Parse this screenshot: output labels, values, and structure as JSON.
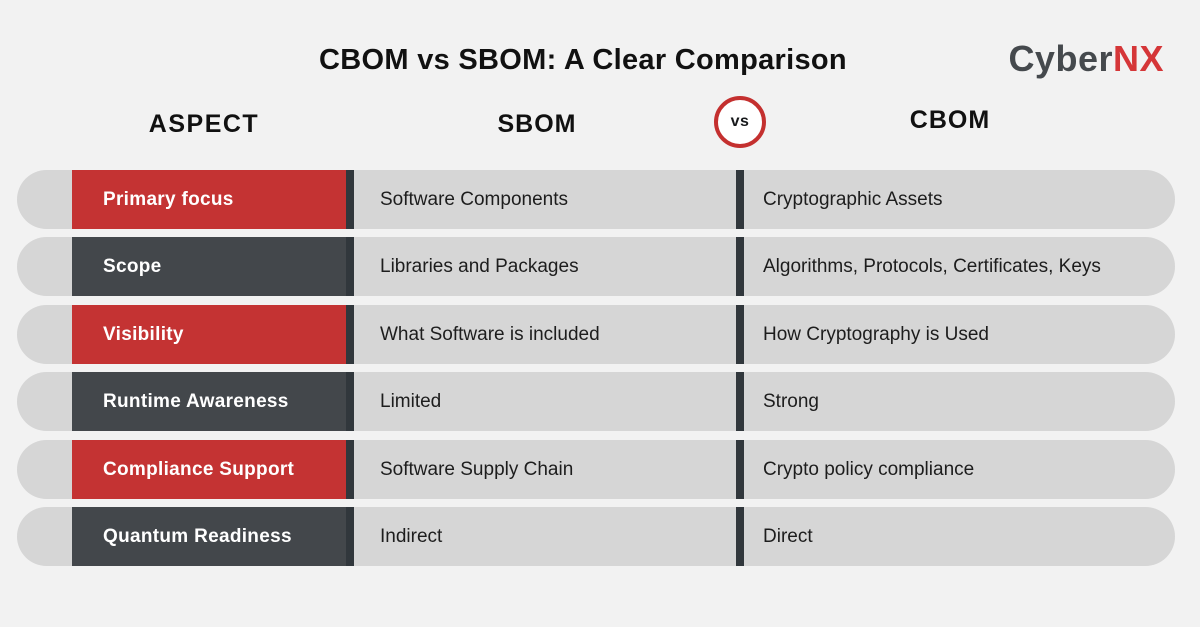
{
  "page": {
    "title": "CBOM vs SBOM: A Clear Comparison"
  },
  "logo": {
    "text_primary": "Cyber",
    "text_accent": "NX"
  },
  "header": {
    "aspect": "ASPECT",
    "sbom": "SBOM",
    "versus": "vs",
    "cbom": "CBOM"
  },
  "colors": {
    "red": "#c43333",
    "dark": "#43474b",
    "divider": "#31373c",
    "row_bg": "#d6d6d6",
    "page_bg": "#f2f2f2",
    "cell_text": "#1d1d1d",
    "logo_gray": "#45494d",
    "logo_red": "#d53638",
    "vs_border": "#c4302f"
  },
  "chart_data": {
    "type": "table",
    "title": "CBOM vs SBOM: A Clear Comparison",
    "columns": [
      "ASPECT",
      "SBOM",
      "CBOM"
    ],
    "rows": [
      {
        "aspect": "Primary focus",
        "sbom": "Software Components",
        "cbom": "Cryptographic Assets",
        "highlight": "red"
      },
      {
        "aspect": "Scope",
        "sbom": "Libraries and Packages",
        "cbom": "Algorithms, Protocols, Certificates, Keys",
        "highlight": "dark"
      },
      {
        "aspect": "Visibility",
        "sbom": "What Software is included",
        "cbom": "How Cryptography is Used",
        "highlight": "red"
      },
      {
        "aspect": "Runtime Awareness",
        "sbom": "Limited",
        "cbom": "Strong",
        "highlight": "dark"
      },
      {
        "aspect": "Compliance Support",
        "sbom": "Software Supply Chain",
        "cbom": "Crypto policy compliance",
        "highlight": "red"
      },
      {
        "aspect": "Quantum Readiness",
        "sbom": "Indirect",
        "cbom": "Direct",
        "highlight": "dark"
      }
    ]
  }
}
